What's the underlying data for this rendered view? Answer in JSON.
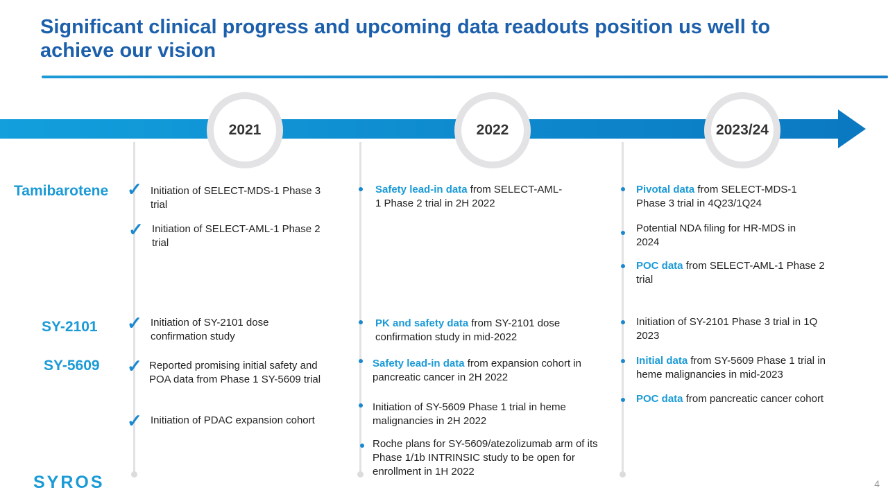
{
  "title": "Significant clinical progress and upcoming data readouts position us well to achieve our vision",
  "years": [
    "2021",
    "2022",
    "2023/24"
  ],
  "rows": {
    "tamibarotene": "Tamibarotene",
    "sy2101": "SY-2101",
    "sy5609": "SY-5609"
  },
  "col2021": [
    "Initiation of SELECT-MDS-1 Phase 3 trial",
    "Initiation of SELECT-AML-1 Phase 2 trial",
    "Initiation of SY-2101 dose confirmation study",
    "Reported promising initial safety and POA data from Phase 1 SY-5609 trial",
    "Initiation of PDAC expansion cohort"
  ],
  "col2022": [
    {
      "hl": "Safety lead-in data",
      "rest": " from SELECT-AML-1 Phase 2 trial in 2H 2022"
    },
    {
      "hl": "PK and safety data",
      "rest": " from SY-2101 dose confirmation study in mid-2022"
    },
    {
      "hl": "Safety lead-in data",
      "rest": " from expansion cohort in pancreatic cancer in 2H 2022"
    },
    {
      "hl": "",
      "rest": "Initiation of SY-5609 Phase 1 trial in heme malignancies in 2H 2022"
    },
    {
      "hl": "",
      "rest": "Roche plans for SY-5609/atezolizumab arm of its Phase 1/1b INTRINSIC study to be open for enrollment in 1H 2022"
    }
  ],
  "col2023": [
    {
      "hl": "Pivotal data",
      "rest": " from SELECT-MDS-1 Phase 3 trial in 4Q23/1Q24"
    },
    {
      "hl": "",
      "rest": "Potential NDA filing for HR-MDS in 2024"
    },
    {
      "hl": "POC data",
      "rest": " from SELECT-AML-1 Phase 2 trial"
    },
    {
      "hl": "",
      "rest": "Initiation of SY-2101 Phase 3 trial in 1Q 2023"
    },
    {
      "hl": "Initial data",
      "rest": " from SY-5609 Phase 1 trial in heme malignancies in mid-2023"
    },
    {
      "hl": "POC data",
      "rest": " from pancreatic cancer cohort"
    }
  ],
  "check_symbol": "✓",
  "logo": "SYROS",
  "page_number": "4"
}
